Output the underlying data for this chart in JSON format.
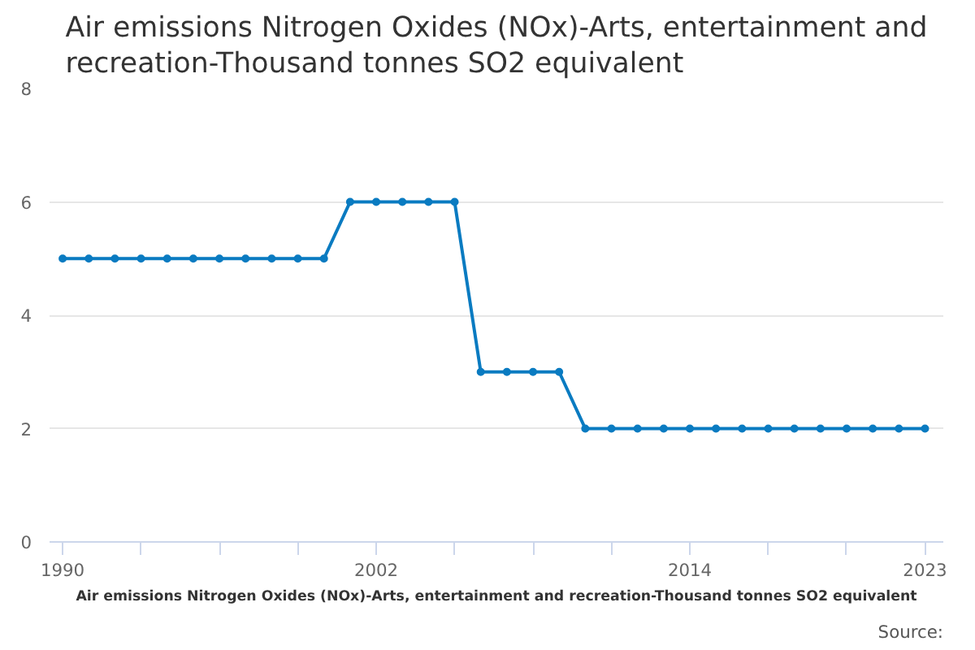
{
  "chart_data": {
    "type": "line",
    "title": "Air emissions Nitrogen Oxides (NOx)-Arts, entertainment and recreation-Thousand tonnes SO2 equivalent",
    "xlabel": "Air emissions Nitrogen Oxides (NOx)-Arts, entertainment and recreation-Thousand tonnes SO2 equivalent",
    "annotations": [
      "Source:"
    ],
    "x": [
      1990,
      1991,
      1992,
      1993,
      1994,
      1995,
      1996,
      1997,
      1998,
      1999,
      2000,
      2001,
      2002,
      2003,
      2004,
      2005,
      2006,
      2007,
      2008,
      2009,
      2010,
      2011,
      2012,
      2013,
      2014,
      2015,
      2016,
      2017,
      2018,
      2019,
      2020,
      2021,
      2022,
      2023
    ],
    "series": [
      {
        "color": "#0a7bc1",
        "values": [
          5,
          5,
          5,
          5,
          5,
          5,
          5,
          5,
          5,
          5,
          5,
          6,
          6,
          6,
          6,
          6,
          3,
          3,
          3,
          3,
          2,
          2,
          2,
          2,
          2,
          2,
          2,
          2,
          2,
          2,
          2,
          2,
          2,
          2
        ]
      }
    ],
    "xlim": [
      1989.5,
      2023.7
    ],
    "xticks": [
      1990,
      {
        "value": 1993,
        "label": null
      },
      {
        "value": 1996,
        "label": null
      },
      {
        "value": 1999,
        "label": null
      },
      2002,
      {
        "value": 2005,
        "label": null
      },
      {
        "value": 2008,
        "label": null
      },
      {
        "value": 2011,
        "label": null
      },
      2014,
      {
        "value": 2017,
        "label": null
      },
      {
        "value": 2020,
        "label": null
      },
      2023
    ],
    "ylim": [
      0,
      8
    ],
    "yticks": [
      0,
      2,
      4,
      6,
      8
    ],
    "grid": "y",
    "marker": "circle",
    "line_style": "solid"
  }
}
